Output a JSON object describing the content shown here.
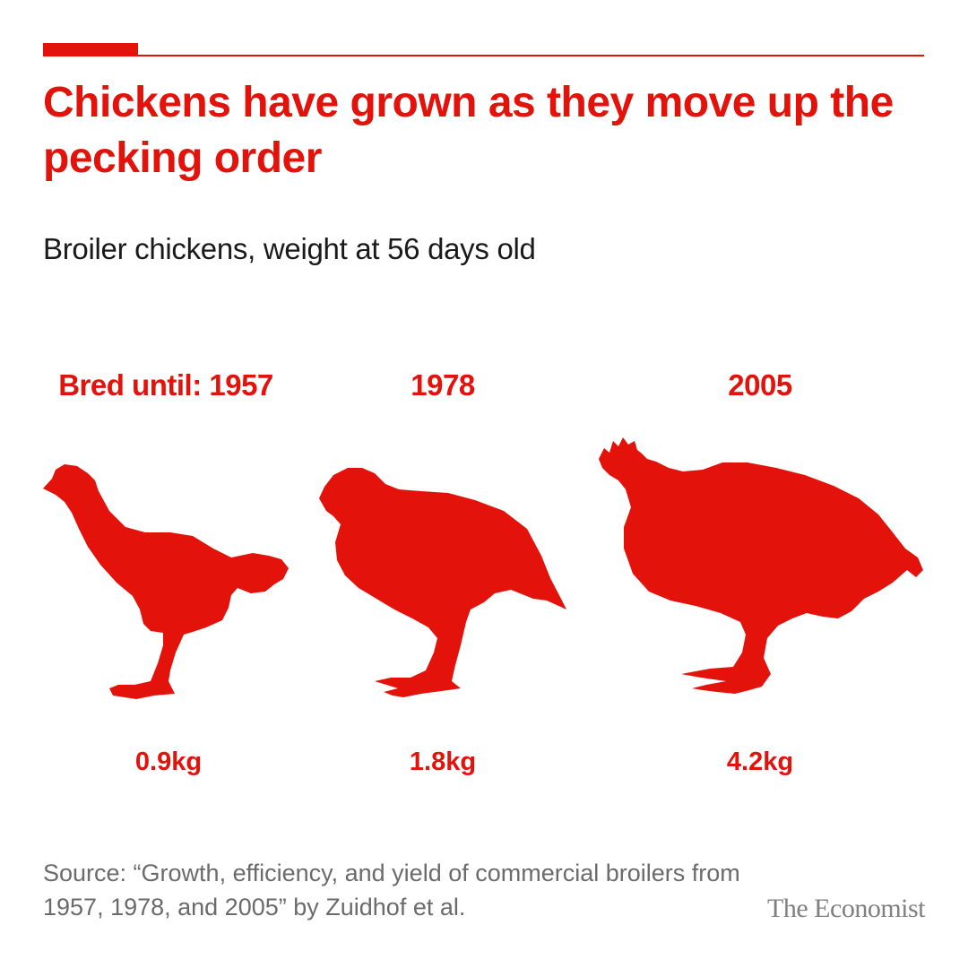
{
  "header": {
    "title": "Chickens have grown as they move up the pecking order",
    "subtitle": "Broiler chickens, weight at 56 days old"
  },
  "chart_data": {
    "type": "pictogram",
    "title": "Chickens have grown as they move up the pecking order",
    "subtitle": "Broiler chickens, weight at 56 days old",
    "year_prefix": "Bred until:",
    "unit": "kg",
    "categories": [
      "1957",
      "1978",
      "2005"
    ],
    "values": [
      0.9,
      1.8,
      4.2
    ],
    "value_labels": [
      "0.9kg",
      "1.8kg",
      "4.2kg"
    ],
    "mark_color": "#e3120b",
    "mark_icon": "chicken-silhouette-icon"
  },
  "footer": {
    "source": "Source: “Growth, efficiency, and yield of commercial broilers from 1957, 1978, and 2005” by Zuidhof et al.",
    "brand": "The Economist"
  }
}
